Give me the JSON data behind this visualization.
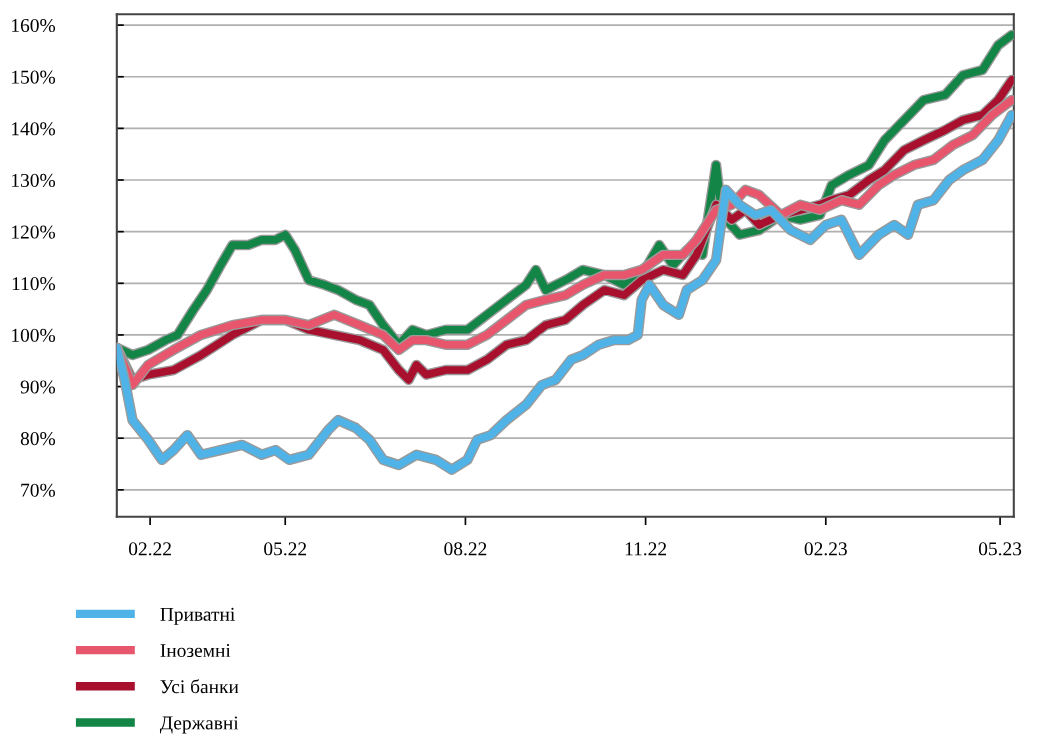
{
  "chart_data": {
    "type": "line",
    "xlim": [
      "2022-02-04",
      "2023-05-08"
    ],
    "ylim": [
      64.8,
      162.1
    ],
    "xticks": [
      {
        "value": "2022-02-21",
        "label": "02.22"
      },
      {
        "value": "2022-05-01",
        "label": "05.22"
      },
      {
        "value": "2022-08-01",
        "label": "08.22"
      },
      {
        "value": "2022-11-01",
        "label": "11.22"
      },
      {
        "value": "2023-02-01",
        "label": "02.23"
      },
      {
        "value": "2023-05-01",
        "label": "05.23"
      }
    ],
    "yticks": [
      {
        "value": 70,
        "label": "70%"
      },
      {
        "value": 80,
        "label": "80%"
      },
      {
        "value": 90,
        "label": "90%"
      },
      {
        "value": 100,
        "label": "100%"
      },
      {
        "value": 110,
        "label": "110%"
      },
      {
        "value": 120,
        "label": "120%"
      },
      {
        "value": 130,
        "label": "130%"
      },
      {
        "value": 140,
        "label": "140%"
      },
      {
        "value": 150,
        "label": "150%"
      },
      {
        "value": 160,
        "label": "160%"
      }
    ],
    "grid": "y",
    "legend": "bottom",
    "marker": "none",
    "line_style": "solid",
    "series": [
      {
        "name": "Приватні",
        "color": "#4fb3e8",
        "x": [
          "2022-02-04",
          "2022-02-08",
          "2022-02-12",
          "2022-02-20",
          "2022-02-27",
          "2022-03-05",
          "2022-03-12",
          "2022-03-19",
          "2022-03-29",
          "2022-04-09",
          "2022-04-19",
          "2022-04-26",
          "2022-05-03",
          "2022-05-13",
          "2022-05-23",
          "2022-05-28",
          "2022-06-06",
          "2022-06-13",
          "2022-06-20",
          "2022-06-28",
          "2022-07-07",
          "2022-07-17",
          "2022-07-25",
          "2022-08-02",
          "2022-08-07",
          "2022-08-14",
          "2022-08-22",
          "2022-09-01",
          "2022-09-09",
          "2022-09-16",
          "2022-09-24",
          "2022-09-30",
          "2022-10-08",
          "2022-10-16",
          "2022-10-23",
          "2022-10-28",
          "2022-10-30",
          "2022-11-03",
          "2022-11-10",
          "2022-11-18",
          "2022-11-22",
          "2022-11-30",
          "2022-12-07",
          "2022-12-12",
          "2022-12-19",
          "2022-12-27",
          "2023-01-04",
          "2023-01-14",
          "2023-01-24",
          "2023-02-01",
          "2023-02-09",
          "2023-02-18",
          "2023-02-28",
          "2023-03-08",
          "2023-03-15",
          "2023-03-20",
          "2023-03-28",
          "2023-04-05",
          "2023-04-12",
          "2023-04-22",
          "2023-04-30",
          "2023-05-07"
        ],
        "values": [
          97.5,
          91.3,
          83.5,
          79.7,
          75.8,
          77.7,
          80.6,
          76.8,
          77.7,
          78.7,
          76.8,
          77.7,
          75.8,
          76.8,
          81.6,
          83.5,
          82.0,
          79.7,
          75.8,
          74.8,
          76.8,
          75.8,
          73.9,
          75.8,
          79.7,
          80.6,
          83.5,
          86.5,
          90.3,
          91.3,
          95.2,
          96.1,
          98.1,
          99.0,
          99.0,
          100.0,
          106.8,
          109.7,
          105.8,
          103.9,
          108.7,
          110.6,
          114.5,
          128.1,
          125.2,
          123.2,
          124.2,
          120.3,
          118.4,
          121.3,
          122.3,
          115.5,
          119.4,
          121.3,
          119.4,
          125.2,
          126.1,
          130.0,
          131.9,
          133.9,
          137.7,
          142.6
        ]
      },
      {
        "name": "Іноземні",
        "color": "#e8566e",
        "x": [
          "2022-02-04",
          "2022-02-12",
          "2022-02-20",
          "2022-03-05",
          "2022-03-19",
          "2022-04-04",
          "2022-04-19",
          "2022-05-01",
          "2022-05-13",
          "2022-05-26",
          "2022-06-08",
          "2022-06-20",
          "2022-06-28",
          "2022-07-05",
          "2022-07-12",
          "2022-07-22",
          "2022-08-02",
          "2022-08-12",
          "2022-08-22",
          "2022-09-01",
          "2022-09-11",
          "2022-09-21",
          "2022-09-30",
          "2022-10-11",
          "2022-10-21",
          "2022-10-30",
          "2022-11-10",
          "2022-11-20",
          "2022-11-27",
          "2022-12-07",
          "2022-12-15",
          "2022-12-22",
          "2022-12-29",
          "2023-01-09",
          "2023-01-19",
          "2023-01-29",
          "2023-02-09",
          "2023-02-18",
          "2023-02-28",
          "2023-03-08",
          "2023-03-18",
          "2023-03-28",
          "2023-04-07",
          "2023-04-17",
          "2023-04-27",
          "2023-05-07"
        ],
        "values": [
          97.5,
          90.3,
          94.2,
          97.1,
          100.0,
          101.9,
          102.9,
          102.9,
          101.9,
          103.9,
          101.9,
          100.0,
          97.1,
          99.0,
          99.0,
          98.1,
          98.1,
          100.0,
          102.9,
          105.8,
          106.8,
          107.7,
          109.7,
          111.6,
          111.6,
          112.6,
          115.5,
          115.5,
          118.4,
          124.2,
          125.2,
          128.1,
          127.1,
          123.2,
          125.2,
          124.2,
          126.1,
          125.2,
          129.0,
          131.0,
          132.9,
          133.9,
          136.8,
          138.7,
          142.6,
          145.5
        ]
      },
      {
        "name": "Усі банки",
        "color": "#a8102e",
        "x": [
          "2022-02-04",
          "2022-02-12",
          "2022-02-20",
          "2022-03-05",
          "2022-03-19",
          "2022-04-04",
          "2022-04-19",
          "2022-05-01",
          "2022-05-13",
          "2022-05-26",
          "2022-06-08",
          "2022-06-20",
          "2022-06-28",
          "2022-07-03",
          "2022-07-07",
          "2022-07-12",
          "2022-07-22",
          "2022-08-02",
          "2022-08-12",
          "2022-08-22",
          "2022-09-01",
          "2022-09-11",
          "2022-09-21",
          "2022-09-30",
          "2022-10-11",
          "2022-10-21",
          "2022-10-30",
          "2022-11-10",
          "2022-11-20",
          "2022-11-27",
          "2022-12-07",
          "2022-12-15",
          "2022-12-22",
          "2022-12-29",
          "2023-01-09",
          "2023-01-19",
          "2023-01-29",
          "2023-02-04",
          "2023-02-13",
          "2023-02-23",
          "2023-03-03",
          "2023-03-13",
          "2023-03-23",
          "2023-04-03",
          "2023-04-12",
          "2023-04-22",
          "2023-04-30",
          "2023-05-07"
        ],
        "values": [
          97.5,
          91.3,
          92.3,
          93.2,
          96.1,
          100.0,
          102.9,
          102.9,
          101.0,
          100.0,
          99.0,
          97.1,
          93.2,
          91.3,
          94.2,
          92.3,
          93.2,
          93.2,
          95.2,
          98.1,
          99.0,
          101.9,
          102.9,
          105.8,
          108.7,
          107.7,
          110.6,
          112.6,
          111.6,
          115.5,
          125.2,
          122.3,
          124.2,
          121.3,
          123.2,
          124.2,
          125.2,
          126.1,
          127.1,
          130.0,
          131.9,
          135.8,
          137.7,
          139.7,
          141.6,
          142.6,
          145.5,
          149.4
        ]
      },
      {
        "name": "Державні",
        "color": "#138546",
        "x": [
          "2022-02-04",
          "2022-02-12",
          "2022-02-20",
          "2022-03-01",
          "2022-03-07",
          "2022-03-15",
          "2022-03-22",
          "2022-03-29",
          "2022-04-04",
          "2022-04-12",
          "2022-04-19",
          "2022-04-26",
          "2022-05-01",
          "2022-05-06",
          "2022-05-13",
          "2022-05-21",
          "2022-05-28",
          "2022-06-06",
          "2022-06-13",
          "2022-06-20",
          "2022-06-28",
          "2022-07-05",
          "2022-07-12",
          "2022-07-22",
          "2022-08-02",
          "2022-08-12",
          "2022-08-22",
          "2022-09-01",
          "2022-09-06",
          "2022-09-11",
          "2022-09-21",
          "2022-09-30",
          "2022-10-11",
          "2022-10-21",
          "2022-10-30",
          "2022-11-08",
          "2022-11-15",
          "2022-11-22",
          "2022-11-30",
          "2022-12-07",
          "2022-12-10",
          "2022-12-19",
          "2022-12-29",
          "2023-01-09",
          "2023-01-19",
          "2023-01-29",
          "2023-02-04",
          "2023-02-13",
          "2023-02-23",
          "2023-03-03",
          "2023-03-13",
          "2023-03-23",
          "2023-04-03",
          "2023-04-12",
          "2023-04-22",
          "2023-04-30",
          "2023-05-07"
        ],
        "values": [
          97.5,
          96.1,
          97.1,
          99.0,
          100.0,
          104.8,
          108.7,
          113.5,
          117.4,
          117.4,
          118.4,
          118.4,
          119.4,
          116.4,
          110.6,
          109.7,
          108.7,
          106.8,
          105.8,
          101.9,
          98.1,
          101.0,
          100.0,
          101.0,
          101.0,
          103.9,
          106.8,
          109.7,
          112.6,
          108.7,
          110.6,
          112.6,
          111.6,
          109.7,
          111.6,
          117.4,
          113.5,
          116.4,
          115.5,
          132.9,
          123.2,
          119.4,
          120.3,
          123.2,
          122.3,
          123.2,
          129.0,
          131.0,
          132.9,
          137.7,
          141.6,
          145.5,
          146.5,
          150.3,
          151.3,
          156.1,
          158.1
        ]
      }
    ]
  }
}
